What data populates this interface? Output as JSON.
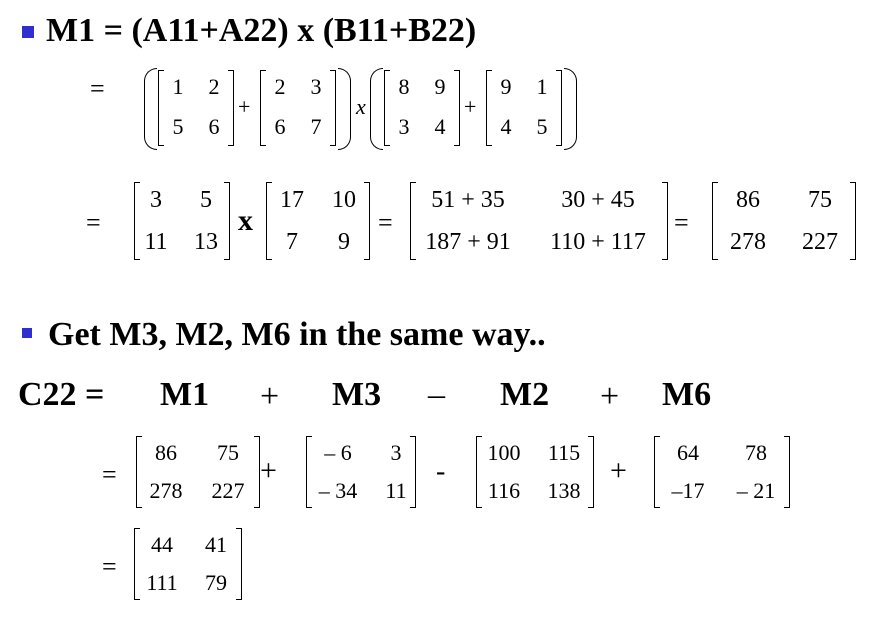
{
  "line1": {
    "heading": "M1 = (A11+A22) x (B11+B22)"
  },
  "line2": {
    "eq": "=",
    "A11": [
      [
        "1",
        "2"
      ],
      [
        "5",
        "6"
      ]
    ],
    "plus1": "+",
    "A22": [
      [
        "2",
        "3"
      ],
      [
        "6",
        "7"
      ]
    ],
    "times": "x",
    "B11": [
      [
        "8",
        "9"
      ],
      [
        "3",
        "4"
      ]
    ],
    "plus2": "+",
    "B22": [
      [
        "9",
        "1"
      ],
      [
        "4",
        "5"
      ]
    ]
  },
  "line3": {
    "eq1": "=",
    "S1": [
      [
        "3",
        "5"
      ],
      [
        "11",
        "13"
      ]
    ],
    "times": "x",
    "S2": [
      [
        "17",
        "10"
      ],
      [
        "7",
        "9"
      ]
    ],
    "eq2": "=",
    "P": [
      [
        "51 + 35",
        "30 + 45"
      ],
      [
        "187 + 91",
        "110 + 117"
      ]
    ],
    "eq3": "=",
    "R": [
      [
        "86",
        "75"
      ],
      [
        "278",
        "227"
      ]
    ]
  },
  "line4": {
    "heading": "Get M3, M2, M6 in the same way.."
  },
  "line5": {
    "label": "C22 =",
    "m1": "M1",
    "op1": "+",
    "m3": "M3",
    "op2": "–",
    "m2": "M2",
    "op3": "+",
    "m6": "M6"
  },
  "line6": {
    "eq": "=",
    "M1": [
      [
        "86",
        "75"
      ],
      [
        "278",
        "227"
      ]
    ],
    "op1": "+",
    "M3": [
      [
        "– 6",
        "3"
      ],
      [
        "– 34",
        "11"
      ]
    ],
    "op2": "-",
    "M2": [
      [
        "100",
        "115"
      ],
      [
        "116",
        "138"
      ]
    ],
    "op3": "+",
    "M6": [
      [
        "64",
        "78"
      ],
      [
        "–17",
        "– 21"
      ]
    ]
  },
  "line7": {
    "eq": "=",
    "C22": [
      [
        "44",
        "41"
      ],
      [
        "111",
        "79"
      ]
    ]
  },
  "style": {
    "bullet_color": "#2f2fd0"
  }
}
